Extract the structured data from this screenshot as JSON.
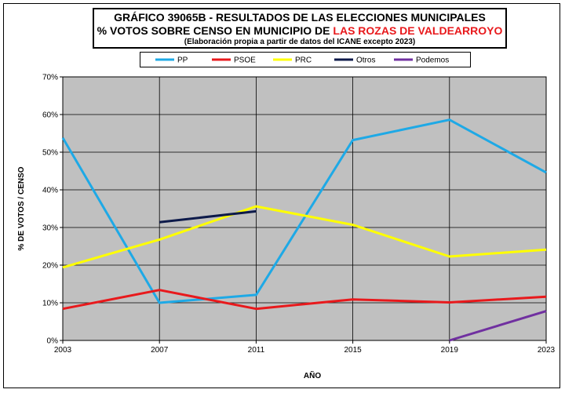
{
  "title": {
    "line1": "GRÁFICO 39065B - RESULTADOS DE LAS ELECCIONES MUNICIPALES",
    "line2_prefix": "% VOTOS SOBRE CENSO EN MUNICIPIO DE ",
    "line2_highlight": "LAS ROZAS DE VALDEARROYO",
    "line3": "(Elaboración propia a partir de datos del ICANE excepto 2023)"
  },
  "colors": {
    "plot_bg": "#c0c0c0",
    "highlight": "#e8191c"
  },
  "chart_data": {
    "type": "line",
    "x": [
      2003,
      2007,
      2011,
      2015,
      2019,
      2023
    ],
    "xlabel": "AÑO",
    "ylabel": "% DE VOTOS / CENSO",
    "ylim": [
      0,
      70
    ],
    "yticks": [
      0,
      10,
      20,
      30,
      40,
      50,
      60,
      70
    ],
    "ytick_labels": [
      "0%",
      "10%",
      "20%",
      "30%",
      "40%",
      "50%",
      "60%",
      "70%"
    ],
    "xtick_labels": [
      "2003",
      "2007",
      "2011",
      "2015",
      "2019",
      "2023"
    ],
    "grid": true,
    "legend_position": "top",
    "series": [
      {
        "name": "PP",
        "color": "#1ea9e6",
        "values": [
          53.8,
          10.0,
          12.1,
          53.2,
          58.6,
          44.6
        ]
      },
      {
        "name": "PSOE",
        "color": "#e8191c",
        "values": [
          8.4,
          13.4,
          8.4,
          10.9,
          10.1,
          11.6
        ]
      },
      {
        "name": "PRC",
        "color": "#ffff00",
        "values": [
          19.4,
          26.8,
          35.6,
          30.7,
          22.3,
          24.1
        ]
      },
      {
        "name": "Otros",
        "color": "#0d1a4a",
        "values": [
          null,
          31.4,
          34.3,
          null,
          null,
          null
        ]
      },
      {
        "name": "Podemos",
        "color": "#7030a0",
        "values": [
          null,
          null,
          null,
          null,
          0.0,
          7.8
        ]
      }
    ]
  }
}
